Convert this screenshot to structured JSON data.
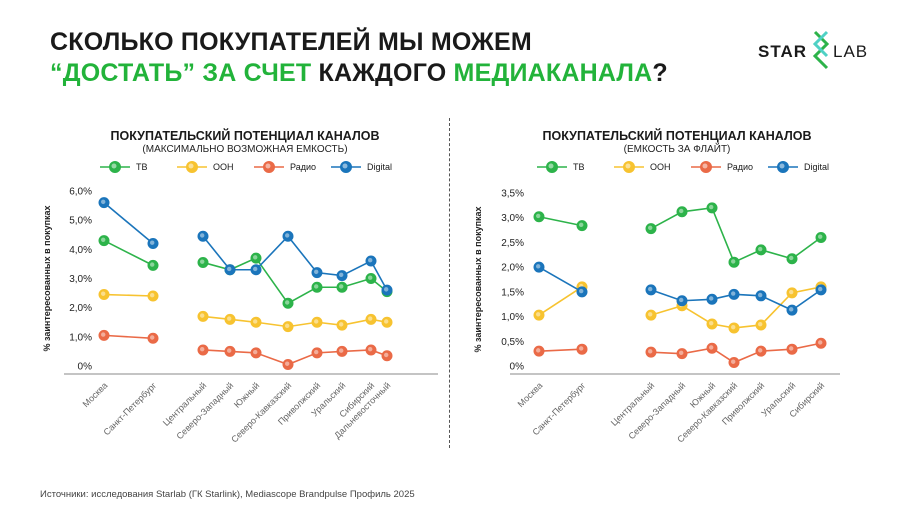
{
  "title": {
    "line1": "СКОЛЬКО ПОКУПАТЕЛЕЙ МЫ МОЖЕМ",
    "line2_green1": "“ДОСТАТЬ” ЗА СЧЕТ",
    "line2_black": " КАЖДОГО ",
    "line2_green2": "МЕДИАКАНАЛА",
    "line2_end": "?"
  },
  "logo": {
    "left": "STAR",
    "right": "LAB"
  },
  "footer": "Источники: исследования Starlab (ГК Starlink), Mediascope Brandpulse Профиль 2025",
  "colors": {
    "tv": "#2db34a",
    "ooh": "#f7c330",
    "radio": "#ea6a47",
    "digital": "#1b75bb",
    "accent": "#22b33a"
  },
  "legend": [
    {
      "key": "tv",
      "label": "ТВ"
    },
    {
      "key": "ooh",
      "label": "OOH"
    },
    {
      "key": "radio",
      "label": "Радио"
    },
    {
      "key": "digital",
      "label": "Digital"
    }
  ],
  "chart_data": [
    {
      "type": "line",
      "title": "ПОКУПАТЕЛЬСКИЙ ПОТЕНЦИАЛ КАНАЛОВ",
      "subtitle": "(МАКСИМАЛЬНО ВОЗМОЖНАЯ ЕМКОСТЬ)",
      "ylabel": "% заинтересованных в покупках",
      "xlabel": "",
      "ylim": [
        0,
        6
      ],
      "yticks": [
        "0%",
        "1,0%",
        "2,0%",
        "3,0%",
        "4,0%",
        "5,0%",
        "6,0%"
      ],
      "ytick_values": [
        0,
        1,
        2,
        3,
        4,
        5,
        6
      ],
      "grid": false,
      "legend_position": "top",
      "categories": [
        "Москва",
        "Санкт-Петербург",
        "Центральный",
        "Северо-Западный",
        "Южный",
        "Северо-Кавказский",
        "Приволжский",
        "Уральский",
        "Сибирский",
        "Дальневосточный"
      ],
      "groups": [
        [
          0,
          1
        ],
        [
          2,
          3,
          4,
          5,
          6,
          7,
          8,
          9
        ]
      ],
      "series": [
        {
          "key": "tv",
          "name": "ТВ",
          "values": [
            4.3,
            3.45,
            3.55,
            3.3,
            3.7,
            2.15,
            2.7,
            2.7,
            3.0,
            2.55
          ]
        },
        {
          "key": "ooh",
          "name": "OOH",
          "values": [
            2.45,
            2.4,
            1.7,
            1.6,
            1.5,
            1.35,
            1.5,
            1.4,
            1.6,
            1.5
          ]
        },
        {
          "key": "radio",
          "name": "Радио",
          "values": [
            1.05,
            0.95,
            0.55,
            0.5,
            0.45,
            0.05,
            0.45,
            0.5,
            0.55,
            0.35
          ]
        },
        {
          "key": "digital",
          "name": "Digital",
          "values": [
            5.6,
            4.2,
            4.45,
            3.3,
            3.3,
            4.45,
            3.2,
            3.1,
            3.6,
            2.6
          ]
        }
      ]
    },
    {
      "type": "line",
      "title": "ПОКУПАТЕЛЬСКИЙ ПОТЕНЦИАЛ КАНАЛОВ",
      "subtitle": "(ЕМКОСТЬ ЗА ФЛАЙТ)",
      "ylabel": "% заинтересованных в покупках",
      "xlabel": "",
      "ylim": [
        0,
        3.5
      ],
      "yticks": [
        "0%",
        "0,5%",
        "1,0%",
        "1,5%",
        "2,0%",
        "2,5%",
        "3,0%",
        "3,5%"
      ],
      "ytick_values": [
        0,
        0.5,
        1,
        1.5,
        2,
        2.5,
        3,
        3.5
      ],
      "grid": false,
      "legend_position": "top",
      "categories": [
        "Москва",
        "Санкт-Петербург",
        "Центральный",
        "Северо-Западный",
        "Южный",
        "Северо-Кавказский",
        "Приволжский",
        "Уральский",
        "Сибирский"
      ],
      "groups": [
        [
          0,
          1
        ],
        [
          2,
          3,
          4,
          5,
          6,
          7,
          8
        ]
      ],
      "series": [
        {
          "key": "tv",
          "name": "ТВ",
          "values": [
            3.02,
            2.84,
            2.78,
            3.12,
            3.2,
            2.1,
            2.35,
            2.17,
            2.6
          ]
        },
        {
          "key": "ooh",
          "name": "OOH",
          "values": [
            1.03,
            1.6,
            1.03,
            1.22,
            0.85,
            0.77,
            0.83,
            1.48,
            1.6
          ]
        },
        {
          "key": "radio",
          "name": "Радио",
          "values": [
            0.3,
            0.34,
            0.28,
            0.25,
            0.36,
            0.07,
            0.3,
            0.34,
            0.46
          ]
        },
        {
          "key": "digital",
          "name": "Digital",
          "values": [
            2.0,
            1.5,
            1.54,
            1.32,
            1.35,
            1.45,
            1.42,
            1.13,
            1.54
          ]
        }
      ]
    }
  ]
}
